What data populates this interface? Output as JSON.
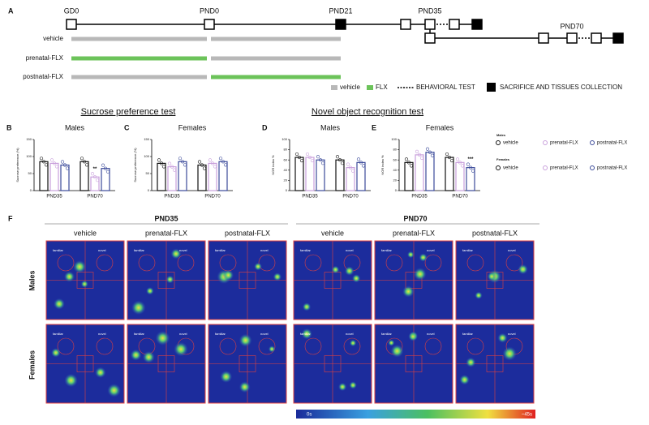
{
  "panel_a": {
    "label": "A",
    "timepoints": [
      "GD0",
      "PND0",
      "PND21",
      "PND35",
      "PND70"
    ],
    "groups": [
      "vehicle",
      "prenatal-FLX",
      "postnatal-FLX"
    ],
    "legend": [
      "vehicle",
      "FLX",
      "BEHAVIORAL TEST",
      "SACRIFICE AND TISSUES COLLECTION"
    ]
  },
  "section_titles": [
    "Sucrose preference test",
    "Novel object recognition test"
  ],
  "chart_data": [
    {
      "type": "bar",
      "label": "B",
      "title": "Males",
      "y_label": "Sucrose preference (%)",
      "categories": [
        "PND35",
        "PND70"
      ],
      "ylim": [
        0,
        150
      ],
      "yticks": [
        0,
        50,
        100,
        150
      ],
      "series": [
        {
          "name": "vehicle",
          "color": "#111111",
          "values": [
            85,
            85
          ]
        },
        {
          "name": "prenatal-FLX",
          "color": "#c9a0dc",
          "values": [
            80,
            40
          ],
          "annotations": [
            null,
            "**"
          ]
        },
        {
          "name": "postnatal-FLX",
          "color": "#3b4a9a",
          "values": [
            75,
            65
          ]
        }
      ]
    },
    {
      "type": "bar",
      "label": "C",
      "title": "Females",
      "y_label": "Sucrose preference (%)",
      "categories": [
        "PND35",
        "PND70"
      ],
      "ylim": [
        0,
        150
      ],
      "yticks": [
        0,
        50,
        100,
        150
      ],
      "series": [
        {
          "name": "vehicle",
          "color": "#111111",
          "values": [
            80,
            75
          ]
        },
        {
          "name": "prenatal-FLX",
          "color": "#c9a0dc",
          "values": [
            70,
            80
          ]
        },
        {
          "name": "postnatal-FLX",
          "color": "#3b4a9a",
          "values": [
            85,
            85
          ]
        }
      ]
    },
    {
      "type": "bar",
      "label": "D",
      "title": "Males",
      "y_label": "NOR index %",
      "categories": [
        "PND35",
        "PND70"
      ],
      "ylim": [
        0,
        100
      ],
      "yticks": [
        0,
        20,
        40,
        60,
        80,
        100
      ],
      "series": [
        {
          "name": "vehicle",
          "color": "#111111",
          "values": [
            65,
            60
          ]
        },
        {
          "name": "prenatal-FLX",
          "color": "#c9a0dc",
          "values": [
            65,
            45
          ]
        },
        {
          "name": "postnatal-FLX",
          "color": "#3b4a9a",
          "values": [
            60,
            55
          ]
        }
      ]
    },
    {
      "type": "bar",
      "label": "E",
      "title": "Females",
      "y_label": "NOR index %",
      "categories": [
        "PND35",
        "PND70"
      ],
      "ylim": [
        0,
        100
      ],
      "yticks": [
        0,
        20,
        40,
        60,
        80,
        100
      ],
      "series": [
        {
          "name": "vehicle",
          "color": "#111111",
          "values": [
            55,
            65
          ]
        },
        {
          "name": "prenatal-FLX",
          "color": "#c9a0dc",
          "values": [
            70,
            55
          ]
        },
        {
          "name": "postnatal-FLX",
          "color": "#3b4a9a",
          "values": [
            75,
            45
          ],
          "annotations": [
            null,
            "***"
          ]
        }
      ]
    }
  ],
  "legend": {
    "males": "Males",
    "females": "Females",
    "groups": [
      "vehicle",
      "prenatal-FLX",
      "postnatal-FLX"
    ]
  },
  "panel_f": {
    "label": "F",
    "ages": [
      "PND35",
      "PND70"
    ],
    "groups": [
      "vehicle",
      "prenatal-FLX",
      "postnatal-FLX"
    ],
    "sexes": [
      "Males",
      "Females"
    ],
    "objects": [
      "familiar",
      "novel"
    ],
    "scale": [
      "0s",
      "~45s"
    ]
  }
}
